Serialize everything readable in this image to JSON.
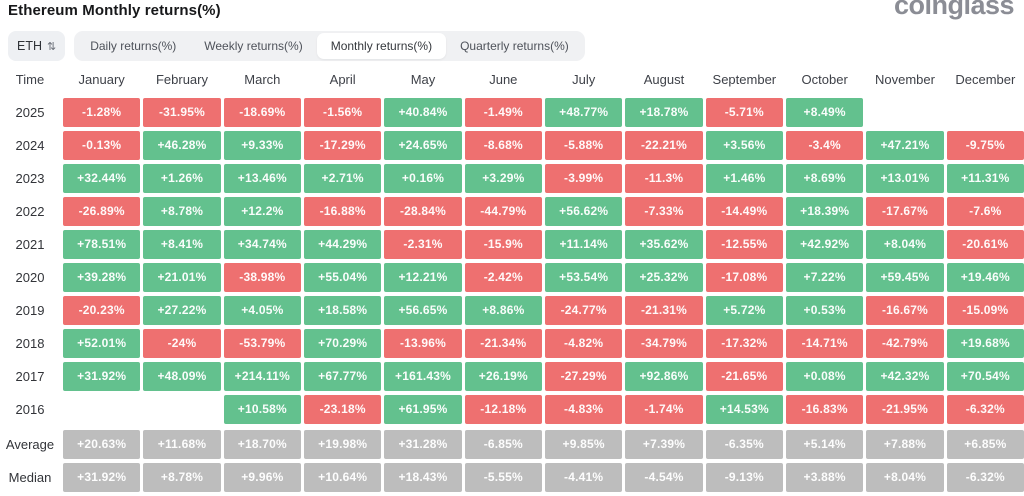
{
  "page": {
    "title": "Ethereum Monthly returns(%)",
    "brand": "coinglass"
  },
  "controls": {
    "symbol_select": {
      "label": "ETH",
      "icon": "sort-arrows-icon"
    },
    "tabs": [
      {
        "label": "Daily returns(%)",
        "active": false
      },
      {
        "label": "Weekly returns(%)",
        "active": false
      },
      {
        "label": "Monthly returns(%)",
        "active": true
      },
      {
        "label": "Quarterly returns(%)",
        "active": false
      }
    ]
  },
  "theme": {
    "positive": "#63c18e",
    "negative": "#ee7070",
    "neutral": "#bdbdbd",
    "tab_bar_bg": "#f0f1f3",
    "active_tab_bg": "#ffffff"
  },
  "table": {
    "columns": [
      "Time",
      "January",
      "February",
      "March",
      "April",
      "May",
      "June",
      "July",
      "August",
      "September",
      "October",
      "November",
      "December"
    ],
    "rows": [
      {
        "label": "2025",
        "type": "year",
        "values": [
          "-1.28%",
          "-31.95%",
          "-18.69%",
          "-1.56%",
          "+40.84%",
          "-1.49%",
          "+48.77%",
          "+18.78%",
          "-5.71%",
          "+8.49%",
          null,
          null
        ]
      },
      {
        "label": "2024",
        "type": "year",
        "values": [
          "-0.13%",
          "+46.28%",
          "+9.33%",
          "-17.29%",
          "+24.65%",
          "-8.68%",
          "-5.88%",
          "-22.21%",
          "+3.56%",
          "-3.4%",
          "+47.21%",
          "-9.75%"
        ]
      },
      {
        "label": "2023",
        "type": "year",
        "values": [
          "+32.44%",
          "+1.26%",
          "+13.46%",
          "+2.71%",
          "+0.16%",
          "+3.29%",
          "-3.99%",
          "-11.3%",
          "+1.46%",
          "+8.69%",
          "+13.01%",
          "+11.31%"
        ]
      },
      {
        "label": "2022",
        "type": "year",
        "values": [
          "-26.89%",
          "+8.78%",
          "+12.2%",
          "-16.88%",
          "-28.84%",
          "-44.79%",
          "+56.62%",
          "-7.33%",
          "-14.49%",
          "+18.39%",
          "-17.67%",
          "-7.6%"
        ]
      },
      {
        "label": "2021",
        "type": "year",
        "values": [
          "+78.51%",
          "+8.41%",
          "+34.74%",
          "+44.29%",
          "-2.31%",
          "-15.9%",
          "+11.14%",
          "+35.62%",
          "-12.55%",
          "+42.92%",
          "+8.04%",
          "-20.61%"
        ]
      },
      {
        "label": "2020",
        "type": "year",
        "values": [
          "+39.28%",
          "+21.01%",
          "-38.98%",
          "+55.04%",
          "+12.21%",
          "-2.42%",
          "+53.54%",
          "+25.32%",
          "-17.08%",
          "+7.22%",
          "+59.45%",
          "+19.46%"
        ]
      },
      {
        "label": "2019",
        "type": "year",
        "values": [
          "-20.23%",
          "+27.22%",
          "+4.05%",
          "+18.58%",
          "+56.65%",
          "+8.86%",
          "-24.77%",
          "-21.31%",
          "+5.72%",
          "+0.53%",
          "-16.67%",
          "-15.09%"
        ]
      },
      {
        "label": "2018",
        "type": "year",
        "values": [
          "+52.01%",
          "-24%",
          "-53.79%",
          "+70.29%",
          "-13.96%",
          "-21.34%",
          "-4.82%",
          "-34.79%",
          "-17.32%",
          "-14.71%",
          "-42.79%",
          "+19.68%"
        ]
      },
      {
        "label": "2017",
        "type": "year",
        "values": [
          "+31.92%",
          "+48.09%",
          "+214.11%",
          "+67.77%",
          "+161.43%",
          "+26.19%",
          "-27.29%",
          "+92.86%",
          "-21.65%",
          "+0.08%",
          "+42.32%",
          "+70.54%"
        ]
      },
      {
        "label": "2016",
        "type": "year",
        "values": [
          null,
          null,
          "+10.58%",
          "-23.18%",
          "+61.95%",
          "-12.18%",
          "-4.83%",
          "-1.74%",
          "+14.53%",
          "-16.83%",
          "-21.95%",
          "-6.32%"
        ]
      },
      {
        "label": "Average",
        "type": "stat",
        "values": [
          "+20.63%",
          "+11.68%",
          "+18.70%",
          "+19.98%",
          "+31.28%",
          "-6.85%",
          "+9.85%",
          "+7.39%",
          "-6.35%",
          "+5.14%",
          "+7.88%",
          "+6.85%"
        ]
      },
      {
        "label": "Median",
        "type": "stat",
        "values": [
          "+31.92%",
          "+8.78%",
          "+9.96%",
          "+10.64%",
          "+18.43%",
          "-5.55%",
          "-4.41%",
          "-4.54%",
          "-9.13%",
          "+3.88%",
          "+8.04%",
          "-6.32%"
        ]
      }
    ]
  }
}
